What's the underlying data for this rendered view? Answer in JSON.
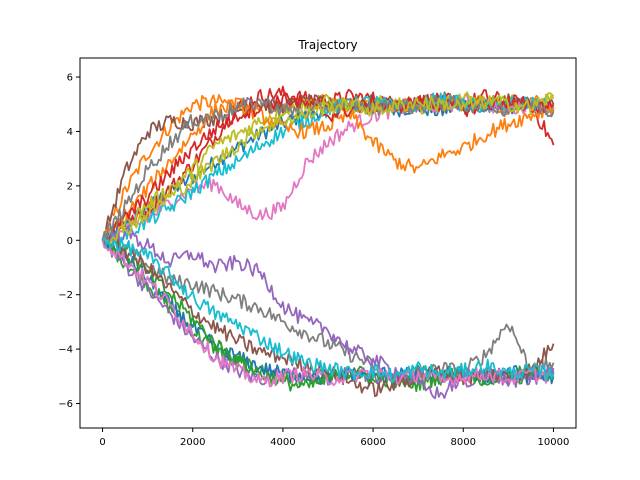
{
  "chart_data": {
    "type": "line",
    "title": "Trajectory",
    "xlabel": "",
    "ylabel": "",
    "xlim": [
      -500,
      10500
    ],
    "ylim": [
      -6.9,
      6.7
    ],
    "xticks": [
      0,
      2000,
      4000,
      6000,
      8000,
      10000
    ],
    "yticks": [
      -6,
      -4,
      -2,
      0,
      2,
      4,
      6
    ],
    "grid": false,
    "legend": "none",
    "palette": [
      "#1f77b4",
      "#ff7f0e",
      "#2ca02c",
      "#d62728",
      "#9467bd",
      "#8c564b",
      "#e377c2",
      "#7f7f7f",
      "#bcbd22",
      "#17becf"
    ],
    "x": [
      0,
      500,
      1000,
      1500,
      2000,
      2500,
      3000,
      3500,
      4000,
      4500,
      5000,
      5500,
      6000,
      6500,
      7000,
      7500,
      8000,
      8500,
      9000,
      9500,
      10000
    ],
    "series": [
      {
        "values": [
          0,
          0.6,
          1.2,
          1.8,
          2.3,
          2.9,
          3.4,
          3.9,
          4.3,
          4.6,
          4.8,
          4.9,
          5.0,
          4.8,
          4.9,
          4.7,
          5.0,
          4.8,
          4.9,
          5.0,
          4.8
        ]
      },
      {
        "values": [
          0,
          1.8,
          3.2,
          4.2,
          5.0,
          5.1,
          5.0,
          4.8,
          4.9,
          5.0,
          5.2,
          4.9,
          5.1,
          5.0,
          4.9,
          5.1,
          5.2,
          5.0,
          4.9,
          5.1,
          5.0
        ]
      },
      {
        "values": [
          0,
          -0.8,
          -1.6,
          -2.5,
          -3.3,
          -4.0,
          -4.5,
          -4.8,
          -5.0,
          -5.1,
          -5.0,
          -4.9,
          -5.2,
          -5.0,
          -4.8,
          -5.1,
          -4.9,
          -5.0,
          -5.1,
          -4.9,
          -4.8
        ]
      },
      {
        "values": [
          0,
          0.5,
          1.1,
          1.9,
          2.8,
          3.8,
          4.9,
          5.3,
          5.4,
          5.2,
          5.1,
          5.3,
          5.2,
          5.0,
          5.1,
          5.2,
          5.0,
          5.3,
          5.1,
          5.0,
          3.5
        ]
      },
      {
        "values": [
          0,
          -0.9,
          -1.8,
          -2.7,
          -3.6,
          -4.3,
          -4.8,
          -5.1,
          -4.9,
          -5.0,
          -5.2,
          -4.8,
          -5.0,
          -5.1,
          -4.9,
          -5.0,
          -5.2,
          -4.9,
          -5.0,
          -5.1,
          -4.9
        ]
      },
      {
        "values": [
          0,
          2.5,
          4.0,
          4.4,
          4.3,
          4.5,
          4.8,
          5.0,
          4.9,
          5.1,
          5.0,
          4.9,
          5.1,
          4.9,
          5.0,
          5.2,
          4.9,
          5.0,
          5.1,
          4.9,
          5.0
        ]
      },
      {
        "values": [
          0,
          0.3,
          0.8,
          1.4,
          1.9,
          2.1,
          1.3,
          0.9,
          1.2,
          2.8,
          3.6,
          4.2,
          4.6,
          4.8,
          5.0,
          4.9,
          5.1,
          5.0,
          4.8,
          5.0,
          4.9
        ]
      },
      {
        "values": [
          0,
          -0.3,
          -0.9,
          -1.5,
          -1.6,
          -1.9,
          -2.2,
          -2.5,
          -3.0,
          -3.4,
          -3.8,
          -4.2,
          -4.6,
          -5.2,
          -5.0,
          -4.7,
          -4.8,
          -4.2,
          -3.0,
          -4.8,
          -4.5
        ]
      },
      {
        "values": [
          0,
          0.6,
          1.3,
          1.9,
          2.6,
          3.5,
          3.9,
          4.4,
          4.8,
          5.0,
          5.1,
          4.9,
          5.0,
          5.1,
          4.9,
          5.0,
          5.2,
          5.0,
          5.1,
          4.9,
          5.2
        ]
      },
      {
        "values": [
          0,
          0.2,
          0.7,
          1.2,
          1.8,
          2.4,
          2.9,
          3.5,
          4.0,
          4.4,
          4.8,
          5.0,
          5.1,
          4.9,
          5.0,
          5.2,
          5.0,
          4.9,
          5.1,
          5.0,
          4.9
        ]
      },
      {
        "values": [
          0,
          -0.6,
          -1.4,
          -2.4,
          -3.2,
          -3.9,
          -4.3,
          -4.7,
          -4.9,
          -5.0,
          -5.1,
          -4.9,
          -5.0,
          -4.8,
          -5.1,
          -5.0,
          -4.9,
          -5.1,
          -4.8,
          -5.0,
          -5.0
        ]
      },
      {
        "values": [
          0,
          0.9,
          1.9,
          2.9,
          3.9,
          4.8,
          5.0,
          4.6,
          4.1,
          4.0,
          4.2,
          4.6,
          3.6,
          2.9,
          2.6,
          3.1,
          3.4,
          3.9,
          4.3,
          4.6,
          4.9
        ]
      },
      {
        "values": [
          0,
          -0.5,
          -1.2,
          -2.0,
          -2.9,
          -3.8,
          -4.4,
          -4.9,
          -5.2,
          -5.4,
          -5.1,
          -4.8,
          -5.0,
          -5.2,
          -5.3,
          -5.0,
          -4.9,
          -5.1,
          -5.0,
          -4.8,
          -4.9
        ]
      },
      {
        "values": [
          0,
          0.8,
          1.6,
          2.5,
          3.4,
          4.1,
          4.6,
          4.9,
          5.2,
          5.0,
          4.6,
          4.8,
          5.0,
          4.9,
          5.1,
          5.0,
          4.8,
          5.0,
          5.1,
          4.9,
          5.0
        ]
      },
      {
        "values": [
          0,
          0.3,
          -0.2,
          -0.8,
          -0.5,
          -1.0,
          -0.8,
          -1.2,
          -2.4,
          -3.0,
          -3.3,
          -4.0,
          -4.4,
          -4.8,
          -5.3,
          -5.7,
          -5.0,
          -4.8,
          -5.2,
          -5.0,
          -4.7
        ]
      },
      {
        "values": [
          0,
          -0.4,
          -1.0,
          -1.8,
          -2.6,
          -3.2,
          -3.7,
          -4.1,
          -4.3,
          -4.6,
          -4.8,
          -5.2,
          -5.5,
          -5.3,
          -5.0,
          -4.8,
          -5.1,
          -4.9,
          -5.0,
          -4.8,
          -3.8
        ]
      },
      {
        "values": [
          0,
          -0.7,
          -1.5,
          -2.4,
          -3.4,
          -4.3,
          -4.8,
          -5.2,
          -5.0,
          -4.9,
          -5.1,
          -5.0,
          -4.8,
          -5.1,
          -4.9,
          -5.2,
          -5.0,
          -4.9,
          -5.1,
          -4.9,
          -5.0
        ]
      },
      {
        "values": [
          0,
          1.2,
          2.6,
          3.6,
          4.4,
          4.6,
          4.9,
          5.1,
          4.8,
          4.7,
          4.9,
          5.0,
          4.8,
          5.0,
          4.9,
          5.1,
          4.9,
          5.0,
          4.8,
          5.0,
          4.7
        ]
      },
      {
        "values": [
          0,
          0.4,
          1.0,
          1.6,
          2.2,
          2.9,
          3.5,
          4.1,
          4.4,
          4.6,
          4.9,
          5.0,
          4.8,
          4.9,
          5.1,
          5.0,
          4.9,
          5.1,
          5.0,
          4.9,
          5.3
        ]
      },
      {
        "values": [
          0,
          -0.2,
          -0.6,
          -1.3,
          -2.1,
          -2.7,
          -3.1,
          -3.6,
          -4.1,
          -4.5,
          -4.7,
          -4.9,
          -4.8,
          -5.0,
          -4.7,
          -4.9,
          -4.8,
          -4.6,
          -4.9,
          -4.8,
          -4.9
        ]
      }
    ]
  }
}
